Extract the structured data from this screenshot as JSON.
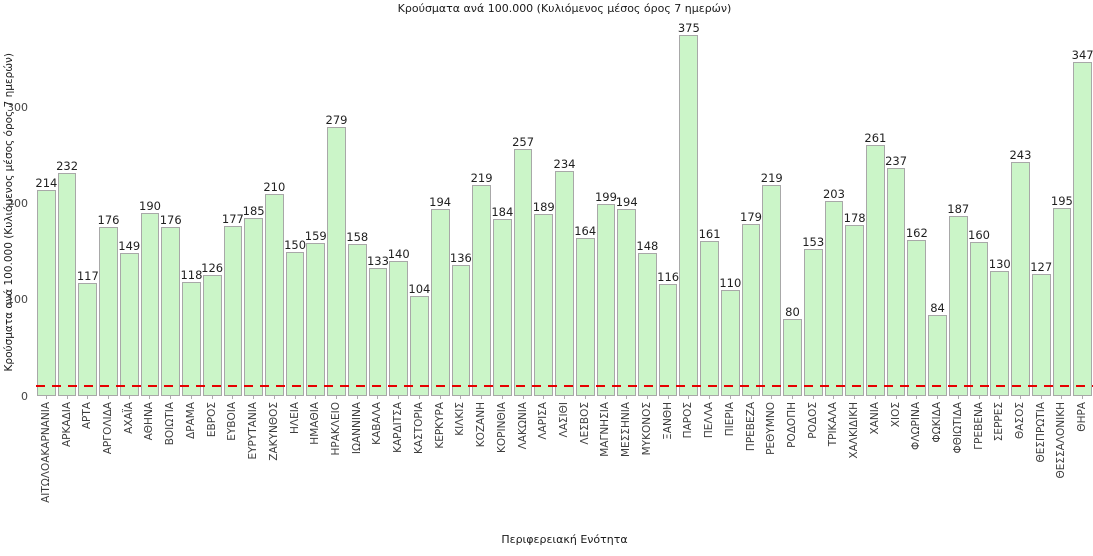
{
  "chart_data": {
    "type": "bar",
    "title": "Κρούσματα ανά 100.000 (Κυλιόμενος μέσος όρος 7 ημερών)",
    "xlabel": "Περιφερειακή Ενότητα",
    "ylabel": "Κρούσματα ανά 100.000 (Κυλιόμενος μέσος όρος 7 ημερών)",
    "categories": [
      "ΑΙΤΩΛΟΑΚΑΡΝΑΝΙΑ",
      "ΑΡΚΑΔΙΑ",
      "ΑΡΤΑ",
      "ΑΡΓΟΛΙΔΑ",
      "ΑΧΑΪΑ",
      "ΑΘΗΝΑ",
      "ΒΟΙΩΤΙΑ",
      "ΔΡΑΜΑ",
      "ΕΒΡΟΣ",
      "ΕΥΒΟΙΑ",
      "ΕΥΡΥΤΑΝΙΑ",
      "ΖΑΚΥΝΘΟΣ",
      "ΗΛΕΙΑ",
      "ΗΜΑΘΙΑ",
      "ΗΡΑΚΛΕΙΟ",
      "ΙΩΑΝΝΙΝΑ",
      "ΚΑΒΑΛΑ",
      "ΚΑΡΔΙΤΣΑ",
      "ΚΑΣΤΟΡΙΑ",
      "ΚΕΡΚΥΡΑ",
      "ΚΙΛΚΙΣ",
      "ΚΟΖΑΝΗ",
      "ΚΟΡΙΝΘΙΑ",
      "ΛΑΚΩΝΙΑ",
      "ΛΑΡΙΣΑ",
      "ΛΑΣΙΘΙ",
      "ΛΕΣΒΟΣ",
      "ΜΑΓΝΗΣΙΑ",
      "ΜΕΣΣΗΝΙΑ",
      "ΜΥΚΟΝΟΣ",
      "ΞΑΝΘΗ",
      "ΠΑΡΟΣ",
      "ΠΕΛΛΑ",
      "ΠΙΕΡΙΑ",
      "ΠΡΕΒΕΖΑ",
      "ΡΕΘΥΜΝΟ",
      "ΡΟΔΟΠΗ",
      "ΡΟΔΟΣ",
      "ΤΡΙΚΑΛΑ",
      "ΧΑΛΚΙΔΙΚΗ",
      "ΧΑΝΙΑ",
      "ΧΙΟΣ",
      "ΦΛΩΡΙΝΑ",
      "ΦΩΚΙΔΑ",
      "ΦΘΙΩΤΙΔΑ",
      "ΓΡΕΒΕΝΑ",
      "ΣΕΡΡΕΣ",
      "ΘΑΣΟΣ",
      "ΘΕΣΠΡΩΤΙΑ",
      "ΘΕΣΣΑΛΟΝΙΚΗ",
      "ΘΗΡΑ"
    ],
    "values": [
      214,
      232,
      117,
      176,
      149,
      190,
      176,
      118,
      126,
      177,
      185,
      210,
      150,
      159,
      279,
      158,
      133,
      140,
      104,
      194,
      136,
      219,
      184,
      257,
      189,
      234,
      164,
      199,
      194,
      148,
      116,
      375,
      161,
      110,
      179,
      219,
      80,
      153,
      203,
      178,
      261,
      237,
      162,
      84,
      187,
      160,
      130,
      243,
      127,
      195,
      347
    ],
    "value_labels_shown": true,
    "yticks": [
      0,
      100,
      200,
      300
    ],
    "ylim": [
      0,
      390
    ],
    "grid": false,
    "legend": "none",
    "bar_fill": "#cbf5c8",
    "bar_edge": "#a8a8a8",
    "tick_color": "#3d3d3d",
    "threshold_line": {
      "value": 10,
      "color": "#e60000",
      "style": "dashed"
    }
  }
}
